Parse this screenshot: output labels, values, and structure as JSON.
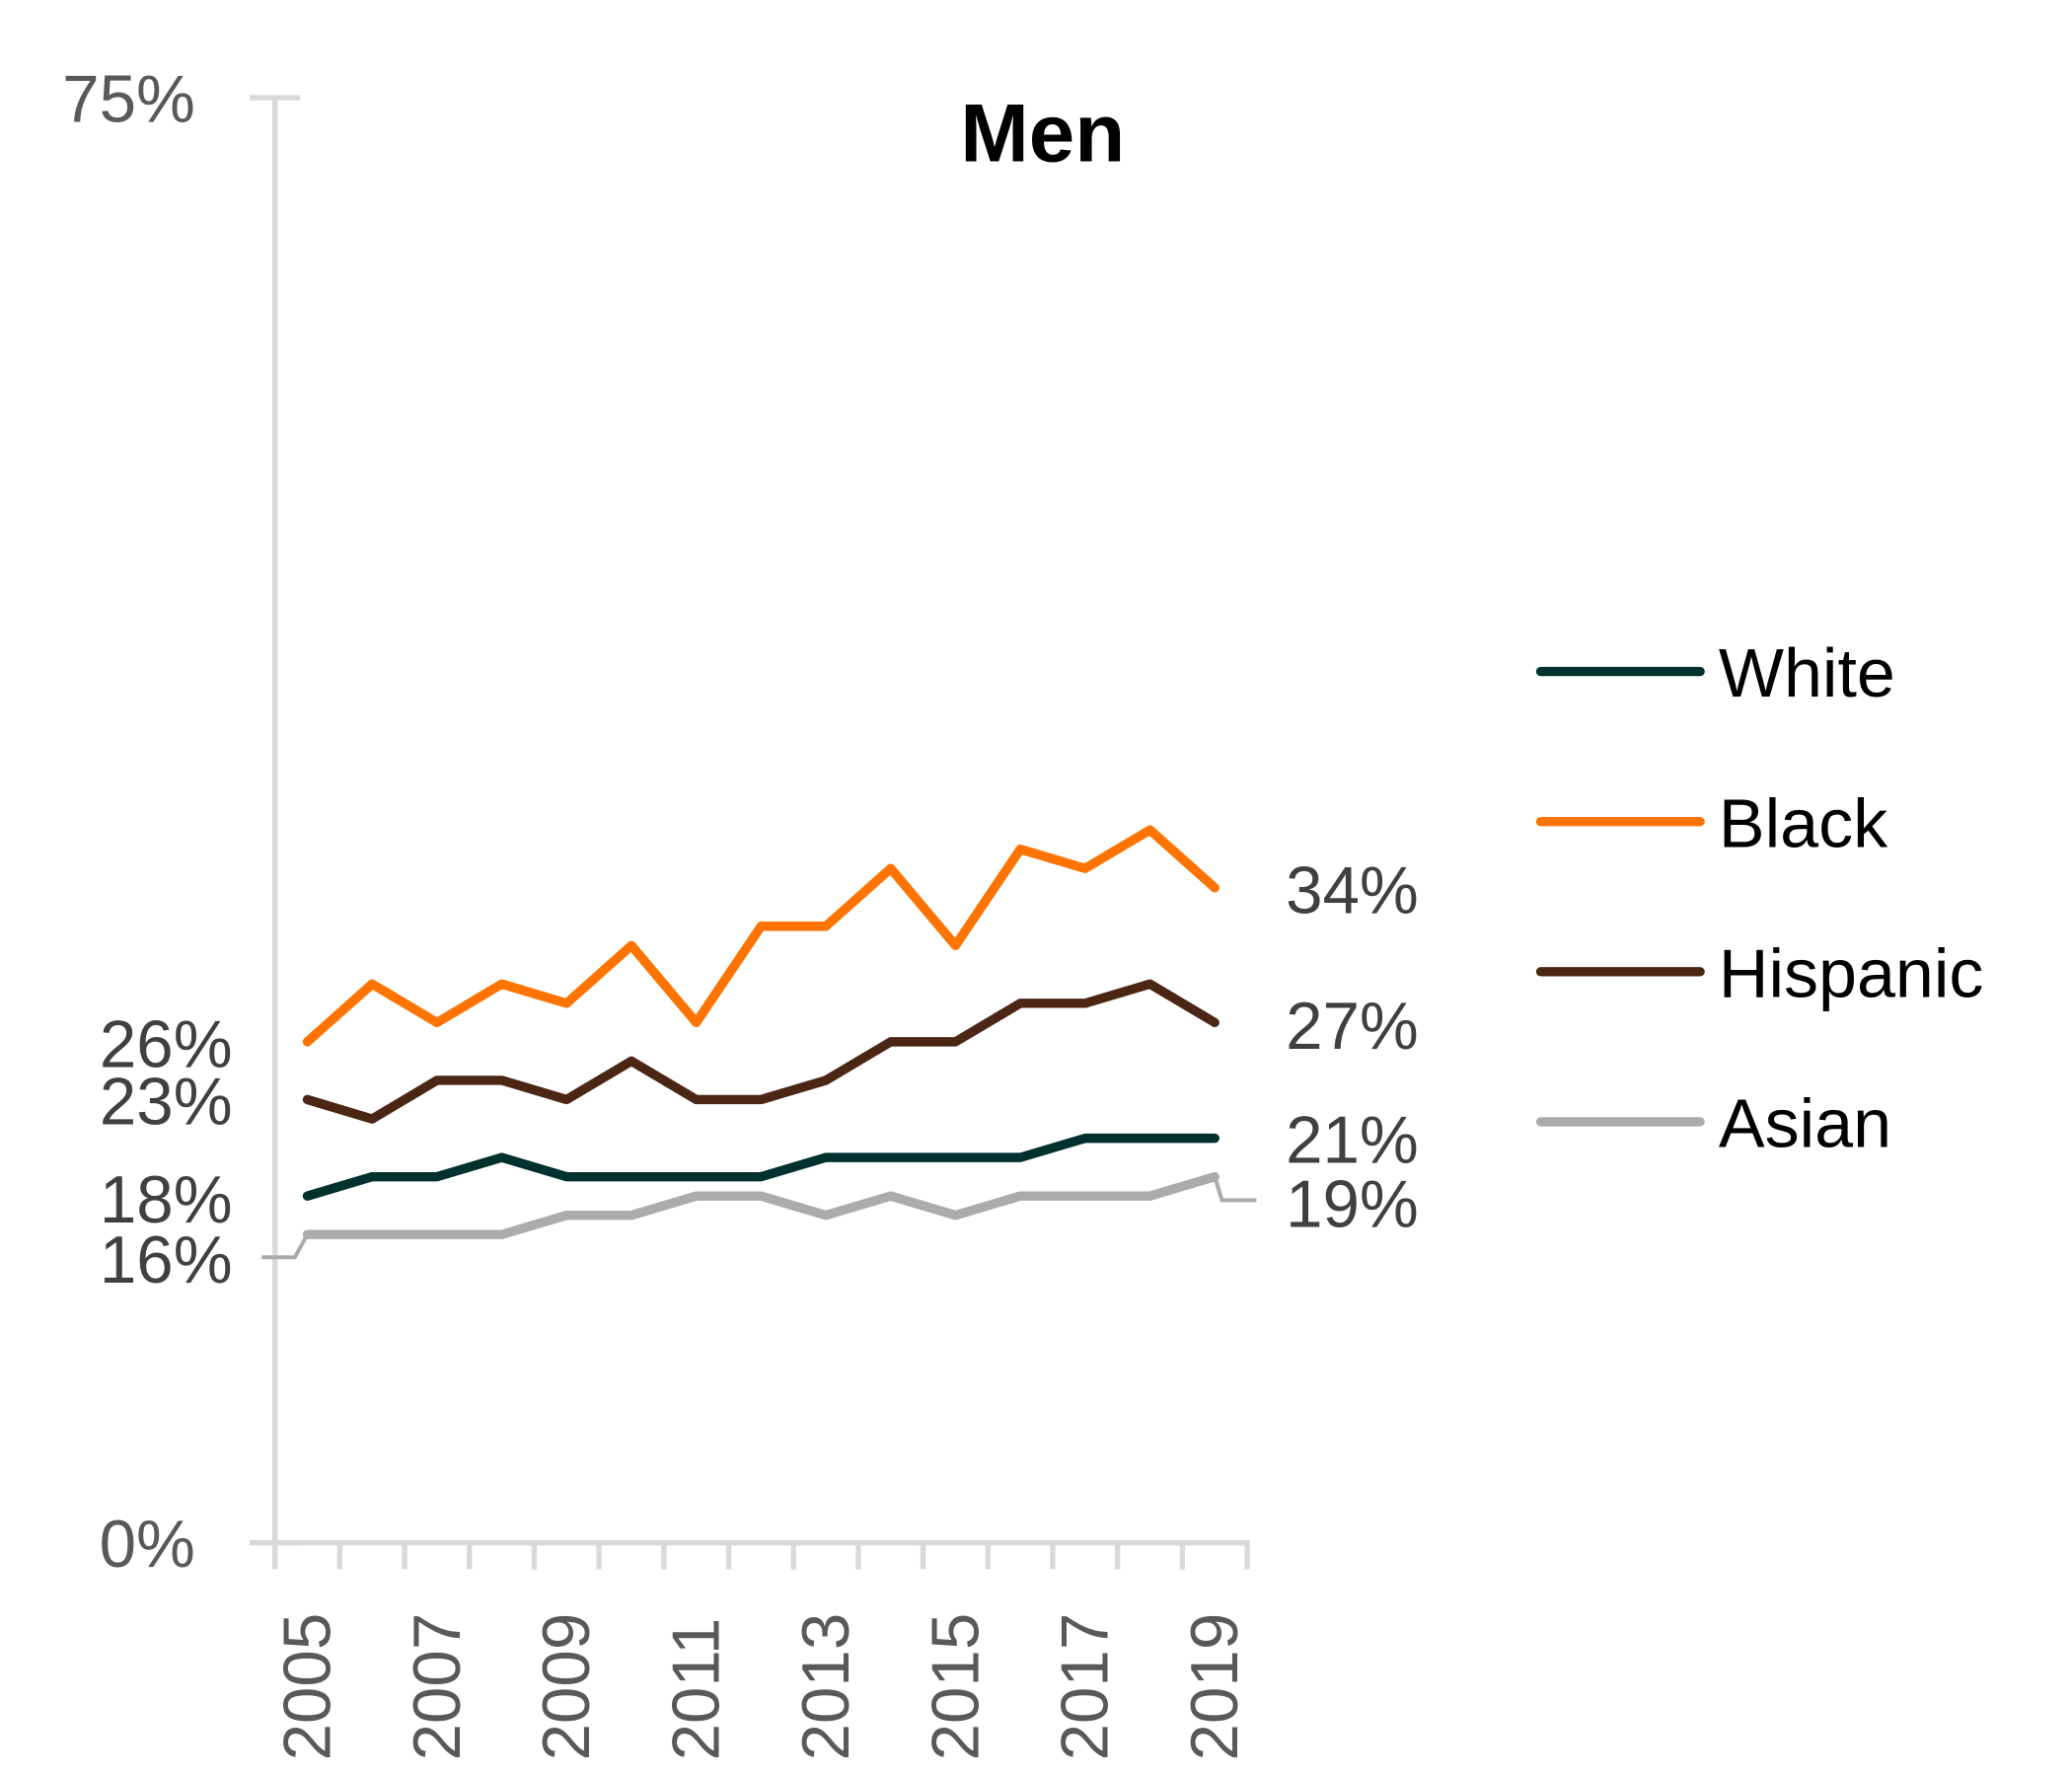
{
  "chart_data": {
    "type": "line",
    "title": "Men",
    "xlabel": "",
    "ylabel": "",
    "x": [
      2005,
      2006,
      2007,
      2008,
      2009,
      2010,
      2011,
      2012,
      2013,
      2014,
      2015,
      2016,
      2017,
      2018,
      2019
    ],
    "x_tick_labels": [
      "2005",
      "2007",
      "2009",
      "2011",
      "2013",
      "2015",
      "2017",
      "2019"
    ],
    "ylim": [
      0,
      75
    ],
    "y_tick_labels": [
      "0%",
      "75%"
    ],
    "grid": false,
    "legend": "right",
    "series": [
      {
        "name": "White",
        "color": "#00312F",
        "values": [
          18,
          19,
          19,
          20,
          19,
          19,
          19,
          19,
          20,
          20,
          20,
          20,
          21,
          21,
          21
        ],
        "start_label": "18%",
        "end_label": "21%"
      },
      {
        "name": "Black",
        "color": "#FF7300",
        "values": [
          26,
          29,
          27,
          29,
          28,
          31,
          27,
          32,
          32,
          35,
          31,
          36,
          35,
          37,
          34
        ],
        "start_label": "26%",
        "end_label": "34%"
      },
      {
        "name": "Hispanic",
        "color": "#4B2615",
        "values": [
          23,
          22,
          24,
          24,
          23,
          25,
          23,
          23,
          24,
          26,
          26,
          28,
          28,
          29,
          27
        ],
        "start_label": "23%",
        "end_label": "27%"
      },
      {
        "name": "Asian",
        "color": "#ABABAB",
        "values": [
          16,
          16,
          16,
          16,
          17,
          17,
          18,
          18,
          17,
          18,
          17,
          18,
          18,
          18,
          19
        ],
        "start_label": "16%",
        "end_label": "19%"
      }
    ]
  }
}
